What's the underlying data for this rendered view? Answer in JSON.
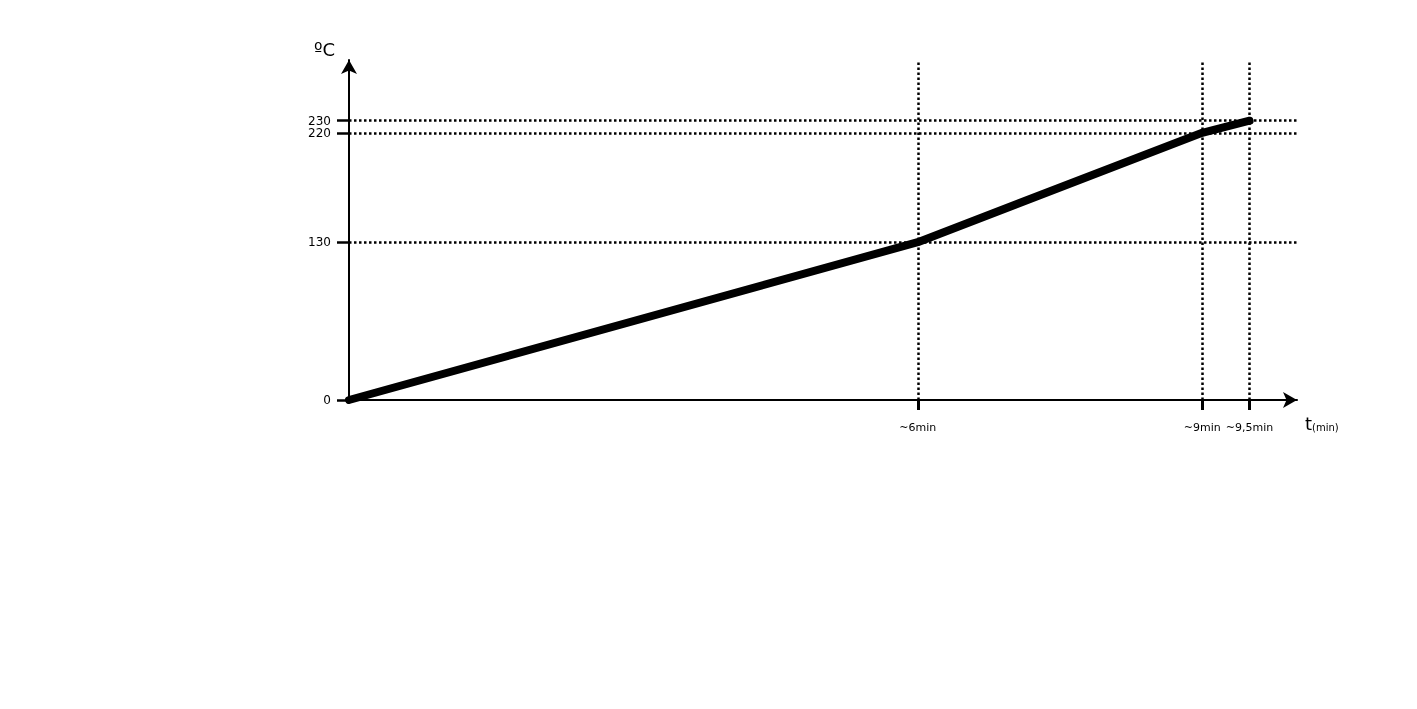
{
  "chart_data": {
    "type": "line",
    "xlabel": "t$_{(min)}$",
    "ylabel": "ºC",
    "x": [
      0,
      6,
      9,
      9.5
    ],
    "series": [
      {
        "color": "#000000",
        "values": [
          0,
          130,
          220,
          230
        ]
      }
    ],
    "xlim": [
      0,
      10
    ],
    "ylim": [
      0,
      280
    ],
    "xticks": [
      {
        "value": 6,
        "label": "~6min"
      },
      {
        "value": 9,
        "label": "~9min"
      },
      {
        "value": 9.5,
        "label": "~9,5min"
      }
    ],
    "yticks": [
      0,
      130,
      220,
      230
    ],
    "ref_lines": [
      {
        "axis": "y",
        "value": 130,
        "line_style": "dotted",
        "color": "#000000"
      },
      {
        "axis": "y",
        "value": 220,
        "line_style": "dotted",
        "color": "#000000"
      },
      {
        "axis": "y",
        "value": 230,
        "line_style": "dotted",
        "color": "#000000"
      },
      {
        "axis": "x",
        "value": 6,
        "line_style": "dotted",
        "color": "#000000"
      },
      {
        "axis": "x",
        "value": 9,
        "line_style": "dotted",
        "color": "#000000"
      },
      {
        "axis": "x",
        "value": 9.5,
        "line_style": "dotted",
        "color": "#000000"
      }
    ],
    "grid": false,
    "marker": "none",
    "line_style": "solid"
  }
}
